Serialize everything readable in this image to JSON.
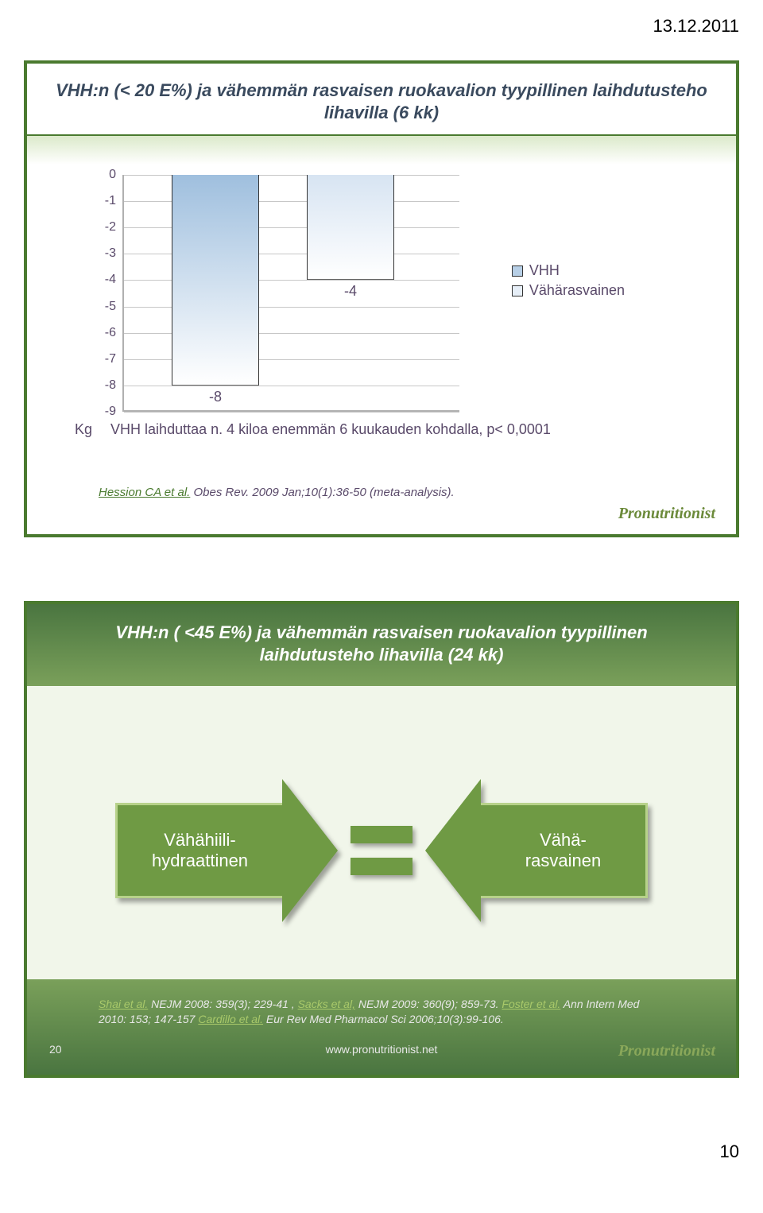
{
  "page": {
    "date": "13.12.2011",
    "page_num": "10"
  },
  "slide1": {
    "border_color": "#4a7a2f",
    "title_color": "#3a4a5e",
    "title_underline": "#4a7a2f",
    "gradient_from": "#d9e8c7",
    "gradient_to": "#ffffff",
    "title": "VHH:n (< 20 E%) ja vähemmän rasvaisen ruokavalion tyypillinen laihdutusteho lihavilla (6 kk)",
    "chart": {
      "type": "bar",
      "y_min": -9,
      "y_max": 0,
      "y_step": 1,
      "tick_labels": [
        "0",
        "-1",
        "-2",
        "-3",
        "-4",
        "-5",
        "-6",
        "-7",
        "-8",
        "-9"
      ],
      "grid_color": "#c7c7c7",
      "bars": [
        {
          "value": -8,
          "label": "-8",
          "color_from": "#9fbfde",
          "color_to": "#ffffff"
        },
        {
          "value": -4,
          "label": "-4",
          "color_from": "#d7e4f2",
          "color_to": "#ffffff"
        }
      ],
      "bar_label_color": "#5a4a6a"
    },
    "legend": [
      {
        "label": "VHH",
        "color": "#b7cfe6"
      },
      {
        "label": "Vähärasvainen",
        "color": "#e6eef7"
      }
    ],
    "legend_text_color": "#5a4a6a",
    "caption_prefix": "Kg",
    "caption_rest": "VHH laihduttaa n. 4 kiloa enemmän 6 kuukauden kohdalla, p< 0,0001",
    "caption_color": "#5a4a6a",
    "citation_link": "Hession CA  et al.",
    "citation_rest": " Obes Rev. 2009 Jan;10(1):36-50 (meta-analysis).",
    "citation_link_color": "#4a7a2f",
    "citation_text_color": "#5a4a6a",
    "logo_text": "Pronutritionist",
    "logo_color": "#6b8a3a"
  },
  "slide2": {
    "border_color": "#4a7a2f",
    "bg_color": "#f1f6ea",
    "title_bg_from": "#4a7540",
    "title_bg_to": "#7aa05a",
    "title_color": "#ffffff",
    "title": "VHH:n ( <45 E%) ja vähemmän rasvaisen ruokavalion tyypillinen laihdutusteho lihavilla (24  kk)",
    "arrow_left_label": "Vähähiili-\nhydraattinen",
    "arrow_right_label": "Vähä-\nrasvainen",
    "arrow_fill": "#6f9a44",
    "arrow_border": "#b7d28a",
    "equals_color": "#6f9a44",
    "citation_html": "Shai et al. NEJM 2008: 359(3); 229-41 , Sacks et al, NEJM 2009: 360(9); 859-73.  Foster et al. Ann Intern Med 2010: 153; 147-157 Cardillo et al. Eur Rev Med Pharmacol Sci 2006;10(3):99-106.",
    "citation_links": [
      "Shai et al.",
      "Sacks et al,",
      " Foster et al.",
      "Cardillo et al."
    ],
    "citation_link_color": "#a9c96a",
    "citation_text_color": "#e8e8e8",
    "slide_number": "20",
    "site_url": "www.pronutritionist.net",
    "footer_bg_from": "#4a7540",
    "footer_bg_to": "#7aa05a",
    "footer_text_color": "#e8e8e8",
    "logo_text": "Pronutritionist",
    "logo_color": "#8aa85a"
  }
}
